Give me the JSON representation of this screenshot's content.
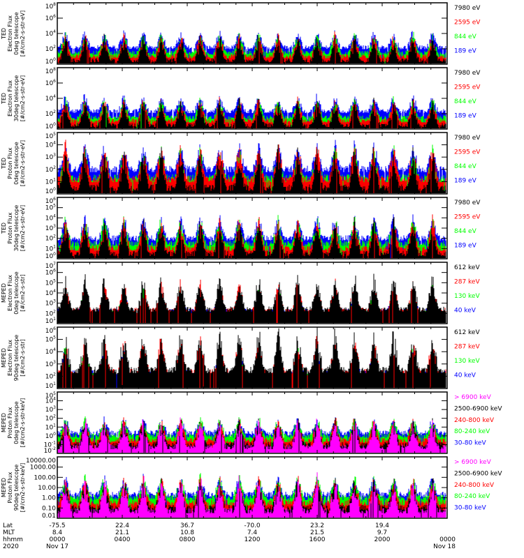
{
  "chart_data": [
    {
      "type": "line",
      "instrument": "TED",
      "ylabel": [
        "TED",
        "Electron Flux",
        "0deg telescope",
        "[#/cm2-s-str-eV]"
      ],
      "yscale": "log",
      "ylim": [
        1,
        100000000
      ],
      "ytick_labels": [
        "10^0",
        "10^2",
        "10^4",
        "10^6",
        "10^8"
      ],
      "ytick_values": [
        1,
        100,
        10000,
        1000000,
        100000000
      ],
      "legend_position": "right",
      "series": [
        {
          "name": "7980 eV",
          "color": "#000000",
          "baseline": 3
        },
        {
          "name": "2595 eV",
          "color": "#ff0000",
          "baseline": 10
        },
        {
          "name": "844 eV",
          "color": "#00ff00",
          "baseline": 30
        },
        {
          "name": "189 eV",
          "color": "#0000ff",
          "baseline": 150
        }
      ]
    },
    {
      "type": "line",
      "instrument": "TED",
      "ylabel": [
        "TED",
        "Electron Flux",
        "30deg telescope",
        "[#/cm2-s-str-eV]"
      ],
      "yscale": "log",
      "ylim": [
        1,
        100000000
      ],
      "ytick_labels": [
        "10^0",
        "10^2",
        "10^4",
        "10^6",
        "10^8"
      ],
      "ytick_values": [
        1,
        100,
        10000,
        1000000,
        100000000
      ],
      "legend_position": "right",
      "series": [
        {
          "name": "7980 eV",
          "color": "#000000",
          "baseline": 3
        },
        {
          "name": "2595 eV",
          "color": "#ff0000",
          "baseline": 12
        },
        {
          "name": "844 eV",
          "color": "#00ff00",
          "baseline": 30
        },
        {
          "name": "189 eV",
          "color": "#0000ff",
          "baseline": 200
        }
      ]
    },
    {
      "type": "line",
      "instrument": "TED",
      "ylabel": [
        "TED",
        "Proton Flux",
        "0deg telescope",
        "[#/cm2-s-str-eV]"
      ],
      "yscale": "log",
      "ylim": [
        1,
        100000
      ],
      "ytick_labels": [
        "10^0",
        "10^1",
        "10^2",
        "10^3",
        "10^4",
        "10^5"
      ],
      "ytick_values": [
        1,
        10,
        100,
        1000,
        10000,
        100000
      ],
      "legend_position": "right",
      "series": [
        {
          "name": "7980 eV",
          "color": "#000000",
          "baseline": 3
        },
        {
          "name": "2595 eV",
          "color": "#ff0000",
          "baseline": 15
        },
        {
          "name": "844 eV",
          "color": "#00ff00",
          "baseline": 20
        },
        {
          "name": "189 eV",
          "color": "#0000ff",
          "baseline": 100
        }
      ]
    },
    {
      "type": "line",
      "instrument": "TED",
      "ylabel": [
        "TED",
        "Proton Flux",
        "30deg telescope",
        "[#/cm2-s-str-eV]"
      ],
      "yscale": "log",
      "ylim": [
        1,
        1000000
      ],
      "ytick_labels": [
        "10^0",
        "10^1",
        "10^2",
        "10^3",
        "10^4",
        "10^5",
        "10^6"
      ],
      "ytick_values": [
        1,
        10,
        100,
        1000,
        10000,
        100000,
        1000000
      ],
      "legend_position": "right",
      "series": [
        {
          "name": "7980 eV",
          "color": "#000000",
          "baseline": 3
        },
        {
          "name": "2595 eV",
          "color": "#ff0000",
          "baseline": 10
        },
        {
          "name": "844 eV",
          "color": "#00ff00",
          "baseline": 30
        },
        {
          "name": "189 eV",
          "color": "#0000ff",
          "baseline": 100
        }
      ]
    },
    {
      "type": "line",
      "instrument": "MEPED",
      "ylabel": [
        "MEPED",
        "Electron Flux",
        "0deg telescope",
        "[#/cm2-s-str]"
      ],
      "yscale": "log",
      "ylim": [
        10,
        10000000
      ],
      "ytick_labels": [
        "10^1",
        "10^2",
        "10^3",
        "10^4",
        "10^5",
        "10^6",
        "10^7"
      ],
      "ytick_values": [
        10,
        100,
        1000,
        10000,
        100000,
        1000000,
        10000000
      ],
      "legend_position": "right",
      "series": [
        {
          "name": "612 keV",
          "color": "#000000",
          "baseline": 250
        },
        {
          "name": "287 keV",
          "color": "#ff0000",
          "baseline": 180
        },
        {
          "name": "130 keV",
          "color": "#00ff00",
          "baseline": 100
        },
        {
          "name": "40 keV",
          "color": "#0000ff",
          "baseline": 150
        }
      ]
    },
    {
      "type": "line",
      "instrument": "MEPED",
      "ylabel": [
        "MEPED",
        "Electron Flux",
        "90deg telescope",
        "[#/cm2-s-str]"
      ],
      "yscale": "log",
      "ylim": [
        10,
        1000000
      ],
      "ytick_labels": [
        "10^1",
        "10^2",
        "10^3",
        "10^4",
        "10^5",
        "10^6"
      ],
      "ytick_values": [
        10,
        100,
        1000,
        10000,
        100000,
        1000000
      ],
      "legend_position": "right",
      "series": [
        {
          "name": "612 keV",
          "color": "#000000",
          "baseline": 300
        },
        {
          "name": "287 keV",
          "color": "#ff0000",
          "baseline": 200
        },
        {
          "name": "130 keV",
          "color": "#00ff00",
          "baseline": 100
        },
        {
          "name": "40 keV",
          "color": "#0000ff",
          "baseline": 150
        }
      ]
    },
    {
      "type": "line",
      "instrument": "MEPED",
      "ylabel": [
        "MEPED",
        "Proton Flux",
        "0deg telescope",
        "[#/cm2-s-str-keV]"
      ],
      "yscale": "log",
      "ylim": [
        0.01,
        100000
      ],
      "ytick_labels": [
        "10^-2",
        "10^-1",
        "10^0",
        "10^1",
        "10^2",
        "10^3",
        "10^4",
        "10^5"
      ],
      "ytick_values": [
        0.01,
        0.1,
        1,
        10,
        100,
        1000,
        10000,
        100000
      ],
      "legend_position": "right",
      "series": [
        {
          "name": "> 6900 keV",
          "color": "#ff00ff",
          "baseline": 0.05
        },
        {
          "name": "2500-6900 keV",
          "color": "#000000",
          "baseline": 0.1
        },
        {
          "name": "240-800 keV",
          "color": "#ff0000",
          "baseline": 0.3
        },
        {
          "name": "80-240 keV",
          "color": "#00ff00",
          "baseline": 1
        },
        {
          "name": "30-80 keV",
          "color": "#0000ff",
          "baseline": 2
        }
      ]
    },
    {
      "type": "line",
      "instrument": "MEPED",
      "ylabel": [
        "MEPED",
        "Proton Flux",
        "90deg telescope",
        "[#/cm2-s-str-keV]"
      ],
      "yscale": "log",
      "ylim": [
        0.01,
        10000
      ],
      "ytick_labels": [
        "0.01",
        "0.10",
        "1.00",
        "10.00",
        "100.00",
        "1000.00",
        "10000.00"
      ],
      "ytick_values": [
        0.01,
        0.1,
        1,
        10,
        100,
        1000,
        10000
      ],
      "legend_position": "right",
      "series": [
        {
          "name": "> 6900 keV",
          "color": "#ff00ff",
          "baseline": 0.05
        },
        {
          "name": "2500-6900 keV",
          "color": "#000000",
          "baseline": 0.1
        },
        {
          "name": "240-800 keV",
          "color": "#ff0000",
          "baseline": 0.3
        },
        {
          "name": "80-240 keV",
          "color": "#00ff00",
          "baseline": 1
        },
        {
          "name": "30-80 keV",
          "color": "#0000ff",
          "baseline": 2
        }
      ]
    }
  ],
  "x_axis": {
    "range_hours": [
      0,
      24
    ],
    "row_labels": [
      "Lat",
      "MLT",
      "hhmm",
      "2020"
    ],
    "ticks": [
      {
        "hour": 0,
        "lat": "-75.5",
        "mlt": "8.4",
        "hhmm": "0000",
        "date": "Nov 17"
      },
      {
        "hour": 4,
        "lat": "22.4",
        "mlt": "21.1",
        "hhmm": "0400",
        "date": ""
      },
      {
        "hour": 8,
        "lat": "36.7",
        "mlt": "10.8",
        "hhmm": "0800",
        "date": ""
      },
      {
        "hour": 12,
        "lat": "-70.0",
        "mlt": "7.4",
        "hhmm": "1200",
        "date": ""
      },
      {
        "hour": 16,
        "lat": "23.2",
        "mlt": "21.5",
        "hhmm": "1600",
        "date": ""
      },
      {
        "hour": 20,
        "lat": "19.4",
        "mlt": "9.7",
        "hhmm": "2000",
        "date": ""
      },
      {
        "hour": 24,
        "lat": "",
        "mlt": "",
        "hhmm": "0000",
        "date": "Nov 18"
      }
    ]
  }
}
